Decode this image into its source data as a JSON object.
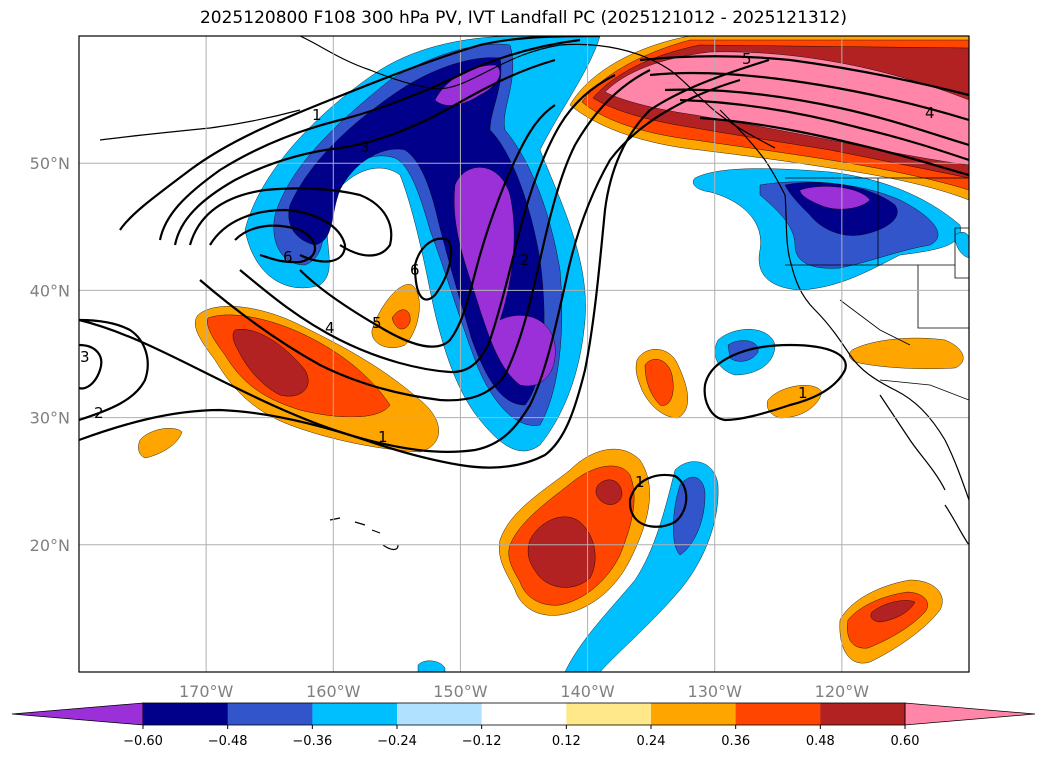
{
  "title": "2025120800 F108 300 hPa PV, IVT Landfall PC (2025121012 - 2025121312)",
  "map": {
    "projection": "equirectangular",
    "lon_range": [
      -180,
      -110
    ],
    "lat_range": [
      10,
      60
    ],
    "lat_ticks": [
      {
        "value": 20,
        "label": "20°N"
      },
      {
        "value": 30,
        "label": "30°N"
      },
      {
        "value": 40,
        "label": "40°N"
      },
      {
        "value": 50,
        "label": "50°N"
      }
    ],
    "lon_ticks": [
      {
        "value": -170,
        "label": "170°W"
      },
      {
        "value": -160,
        "label": "160°W"
      },
      {
        "value": -150,
        "label": "150°W"
      },
      {
        "value": -140,
        "label": "140°W"
      },
      {
        "value": -130,
        "label": "130°W"
      },
      {
        "value": -120,
        "label": "120°W"
      }
    ],
    "grid": true,
    "gridline_color": "#b0b0b0"
  },
  "pv_contours": {
    "labels": [
      "1",
      "2",
      "3",
      "4",
      "5",
      "6",
      "6",
      "5",
      "4",
      "3",
      "2",
      "1",
      "1",
      "1",
      "5",
      "4",
      "2",
      "3"
    ]
  },
  "colorbar": {
    "ticks": [
      "−0.60",
      "−0.48",
      "−0.36",
      "−0.24",
      "−0.12",
      "0.12",
      "0.24",
      "0.36",
      "0.48",
      "0.60"
    ],
    "colors": [
      "#9b30d9",
      "#00008b",
      "#3355cc",
      "#00bfff",
      "#b0e2ff",
      "#ffffff",
      "#ffe88a",
      "#ffa500",
      "#ff4500",
      "#b22222",
      "#ff86a8"
    ],
    "extend": "both"
  },
  "fill_colors": {
    "purple": "#9b30d9",
    "navy": "#00008b",
    "royal": "#3355cc",
    "sky": "#00bfff",
    "orange": "#ffa500",
    "redorange": "#ff4500",
    "firebrick": "#b22222",
    "pink": "#ff86a8"
  }
}
